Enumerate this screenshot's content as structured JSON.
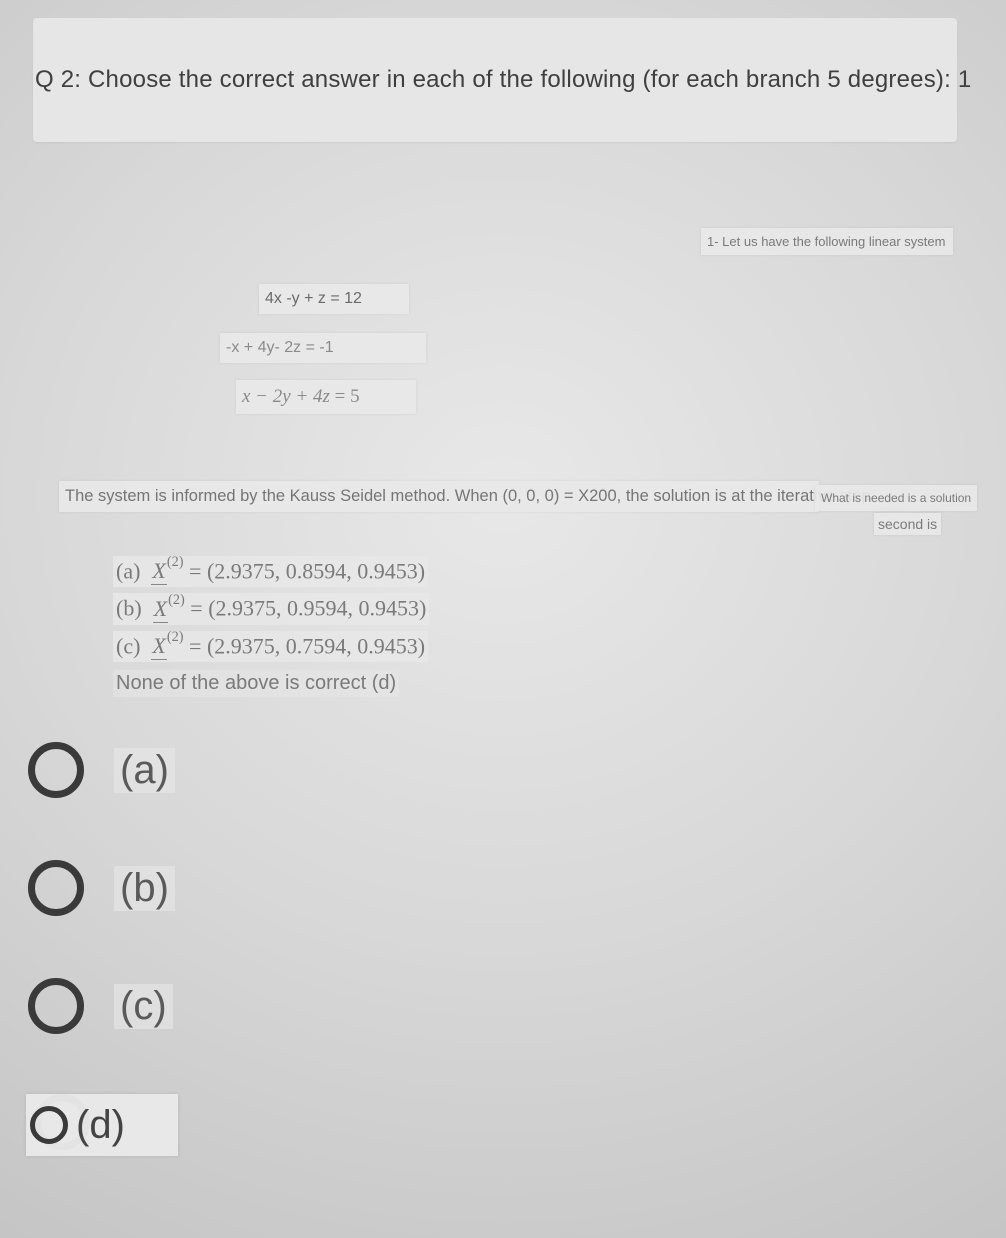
{
  "question_header": "Q 2: Choose the correct answer in each of the following (for each branch 5 degrees): 1",
  "intro": "1- Let us have the following linear system",
  "equations": {
    "eq1": "4x -y + z = 12",
    "eq2": "-x + 4y- 2z = -1",
    "eq3_lhs": "x − 2y + 4z",
    "eq3_rhs": "= 5"
  },
  "method_line": "The system is informed by the Kauss Seidel method. When (0, 0, 0) = X200, the solution is at the iterative step",
  "needed_line": "What is needed is a solution",
  "second_line": "second is",
  "answers": {
    "a_prefix": "(a)",
    "a_vec": "= (2.9375,  0.8594,  0.9453)",
    "b_prefix": "(b)",
    "b_vec": "= (2.9375,  0.9594,  0.9453)",
    "c_prefix": "(c)",
    "c_vec": "= (2.9375,  0.7594,  0.9453)",
    "d_text": "None of the above is correct (d)"
  },
  "options": {
    "a": "(a)",
    "b": "(b)",
    "c": "(c)",
    "d": "(d)"
  },
  "colors": {
    "text_dark": "#3f3f3f",
    "text_muted": "#7a7a7a",
    "radio_ring": "#3a3a3a",
    "snippet_bg": "#e7e7e7"
  }
}
